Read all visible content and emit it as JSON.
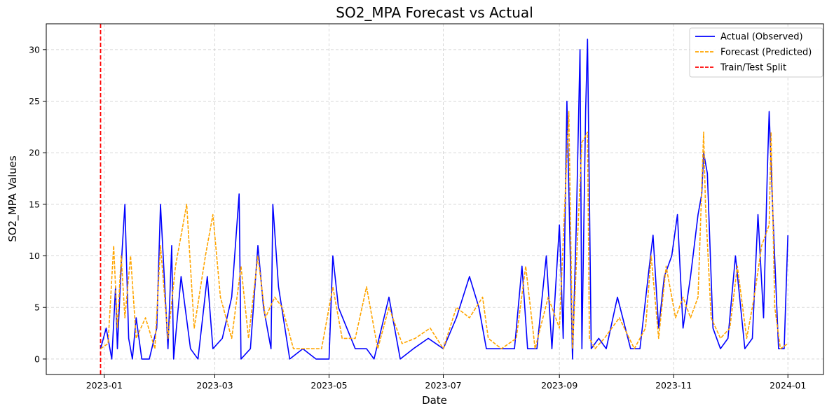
{
  "chart_data": {
    "type": "line",
    "title": "SO2_MPA Forecast vs Actual",
    "xlabel": "Date",
    "ylabel": "SO2_MPA Values",
    "xlim": [
      "2022-12-01",
      "2024-01-20"
    ],
    "ylim": [
      -1.5,
      32.5
    ],
    "x_ticks": [
      "2023-01",
      "2023-03",
      "2023-05",
      "2023-07",
      "2023-09",
      "2023-11",
      "2024-01"
    ],
    "y_ticks": [
      0,
      5,
      10,
      15,
      20,
      25,
      30
    ],
    "grid": true,
    "legend_position": "top-right",
    "split_date": "2022-12-30",
    "series": [
      {
        "name": "Actual (Observed)",
        "color": "#0000ff",
        "dash": "solid",
        "x": [
          "2022-12-30",
          "2023-01-02",
          "2023-01-05",
          "2023-01-07",
          "2023-01-08",
          "2023-01-10",
          "2023-01-12",
          "2023-01-14",
          "2023-01-16",
          "2023-01-18",
          "2023-01-21",
          "2023-01-25",
          "2023-01-29",
          "2023-01-31",
          "2023-02-04",
          "2023-02-06",
          "2023-02-07",
          "2023-02-11",
          "2023-02-16",
          "2023-02-20",
          "2023-02-25",
          "2023-02-28",
          "2023-03-05",
          "2023-03-10",
          "2023-03-14",
          "2023-03-15",
          "2023-03-20",
          "2023-03-24",
          "2023-03-27",
          "2023-03-31",
          "2023-04-01",
          "2023-04-04",
          "2023-04-10",
          "2023-04-17",
          "2023-04-24",
          "2023-05-01",
          "2023-05-03",
          "2023-05-06",
          "2023-05-15",
          "2023-05-21",
          "2023-05-25",
          "2023-06-02",
          "2023-06-08",
          "2023-06-15",
          "2023-06-23",
          "2023-07-01",
          "2023-07-08",
          "2023-07-15",
          "2023-07-20",
          "2023-07-24",
          "2023-08-01",
          "2023-08-08",
          "2023-08-12",
          "2023-08-15",
          "2023-08-20",
          "2023-08-25",
          "2023-08-28",
          "2023-09-01",
          "2023-09-03",
          "2023-09-05",
          "2023-09-08",
          "2023-09-10",
          "2023-09-12",
          "2023-09-13",
          "2023-09-15",
          "2023-09-16",
          "2023-09-18",
          "2023-09-22",
          "2023-09-26",
          "2023-10-02",
          "2023-10-09",
          "2023-10-14",
          "2023-10-19",
          "2023-10-21",
          "2023-10-24",
          "2023-10-27",
          "2023-10-31",
          "2023-11-03",
          "2023-11-06",
          "2023-11-10",
          "2023-11-14",
          "2023-11-16",
          "2023-11-17",
          "2023-11-19",
          "2023-11-22",
          "2023-11-26",
          "2023-11-30",
          "2023-12-04",
          "2023-12-09",
          "2023-12-13",
          "2023-12-16",
          "2023-12-19",
          "2023-12-21",
          "2023-12-22",
          "2023-12-24",
          "2023-12-27",
          "2023-12-30",
          "2024-01-01"
        ],
        "y": [
          1,
          3,
          0,
          7,
          1,
          9,
          15,
          2,
          0,
          4,
          0,
          0,
          3,
          15,
          1,
          11,
          0,
          8,
          1,
          0,
          8,
          1,
          2,
          6,
          16,
          0,
          1,
          11,
          5,
          1,
          15,
          7,
          0,
          1,
          0,
          0,
          10,
          5,
          1,
          1,
          0,
          6,
          0,
          1,
          2,
          1,
          4,
          8,
          5,
          1,
          1,
          1,
          9,
          1,
          1,
          10,
          1,
          13,
          2,
          25,
          0,
          13,
          30,
          1,
          24,
          31,
          1,
          2,
          1,
          6,
          1,
          1,
          9,
          12,
          3,
          8,
          10,
          14,
          3,
          8,
          14,
          16,
          20,
          18,
          3,
          1,
          2,
          10,
          1,
          2,
          14,
          4,
          18,
          24,
          14,
          1,
          1,
          12
        ]
      },
      {
        "name": "Forecast (Predicted)",
        "color": "#ffa500",
        "dash": "dashed",
        "x": [
          "2022-12-30",
          "2023-01-03",
          "2023-01-06",
          "2023-01-08",
          "2023-01-10",
          "2023-01-12",
          "2023-01-15",
          "2023-01-18",
          "2023-01-23",
          "2023-01-28",
          "2023-01-31",
          "2023-02-04",
          "2023-02-08",
          "2023-02-14",
          "2023-02-18",
          "2023-02-24",
          "2023-02-28",
          "2023-03-04",
          "2023-03-10",
          "2023-03-15",
          "2023-03-19",
          "2023-03-24",
          "2023-03-28",
          "2023-04-02",
          "2023-04-06",
          "2023-04-12",
          "2023-04-20",
          "2023-04-27",
          "2023-05-03",
          "2023-05-08",
          "2023-05-15",
          "2023-05-21",
          "2023-05-27",
          "2023-06-02",
          "2023-06-09",
          "2023-06-16",
          "2023-06-24",
          "2023-07-01",
          "2023-07-08",
          "2023-07-15",
          "2023-07-22",
          "2023-07-25",
          "2023-08-01",
          "2023-08-09",
          "2023-08-14",
          "2023-08-19",
          "2023-08-26",
          "2023-09-01",
          "2023-09-06",
          "2023-09-08",
          "2023-09-13",
          "2023-09-16",
          "2023-09-17",
          "2023-09-20",
          "2023-09-25",
          "2023-10-03",
          "2023-10-11",
          "2023-10-17",
          "2023-10-20",
          "2023-10-24",
          "2023-10-28",
          "2023-11-02",
          "2023-11-06",
          "2023-11-10",
          "2023-11-14",
          "2023-11-17",
          "2023-11-18",
          "2023-11-21",
          "2023-11-26",
          "2023-12-01",
          "2023-12-05",
          "2023-12-10",
          "2023-12-14",
          "2023-12-18",
          "2023-12-22",
          "2023-12-23",
          "2023-12-25",
          "2023-12-28",
          "2024-01-01"
        ],
        "y": [
          1,
          1.5,
          11,
          3,
          10,
          4,
          10,
          2,
          4,
          1,
          11,
          2,
          9,
          15,
          3,
          10,
          14,
          6,
          2,
          9,
          2,
          10,
          4,
          6,
          5,
          1,
          1,
          1,
          7,
          2,
          2,
          7,
          1,
          5,
          1.5,
          2,
          3,
          1,
          5,
          4,
          6,
          2,
          1,
          2,
          9,
          1,
          6,
          3,
          24,
          1,
          21,
          22,
          2,
          1,
          2,
          4,
          1,
          3,
          10,
          2,
          9,
          4,
          6,
          4,
          6,
          22,
          15,
          4,
          2,
          3,
          9,
          2,
          6,
          11,
          13,
          22,
          5,
          1,
          1.5
        ]
      }
    ],
    "reference_lines": [
      {
        "name": "Train/Test Split",
        "color": "#ff0000",
        "dash": "dashed"
      }
    ]
  }
}
